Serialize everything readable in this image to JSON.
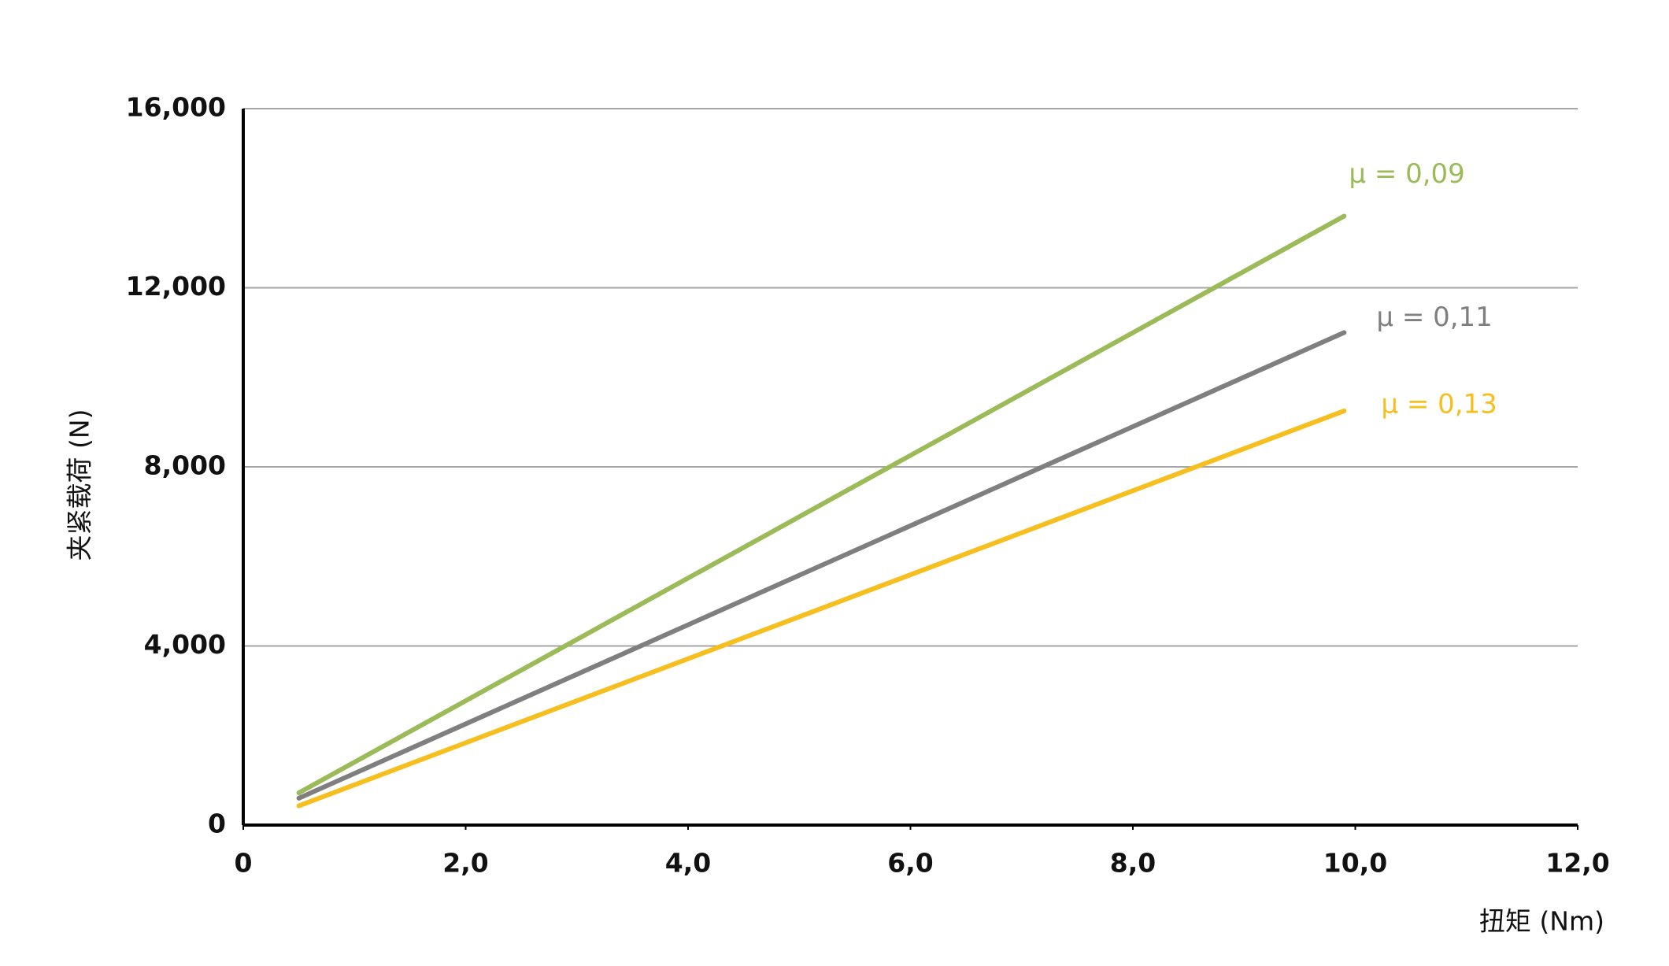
{
  "chart_data": {
    "type": "line",
    "x_label": "扭矩 (Nm)",
    "y_label": "夹紧载荷 (N)",
    "x": [
      0.5,
      9.9
    ],
    "series": [
      {
        "name": "μ = 0,09",
        "color": "#9bbb59",
        "values": [
          720,
          13600
        ]
      },
      {
        "name": "μ = 0,11",
        "color": "#7f7f7f",
        "values": [
          600,
          11000
        ]
      },
      {
        "name": "μ = 0,13",
        "color": "#f6be1e",
        "values": [
          430,
          9250
        ]
      }
    ],
    "xlim": [
      0,
      12
    ],
    "xticks": [
      0,
      {
        "value": 2,
        "label": "2,0"
      },
      {
        "value": 4,
        "label": "4,0"
      },
      {
        "value": 6,
        "label": "6,0"
      },
      {
        "value": 8,
        "label": "8,0"
      },
      {
        "value": 10,
        "label": "10,0"
      },
      {
        "value": 12,
        "label": "12,0"
      }
    ],
    "ylim": [
      0,
      16000
    ],
    "yticks": [
      0,
      {
        "value": 4000,
        "label": "4,000"
      },
      {
        "value": 8000,
        "label": "8,000"
      },
      {
        "value": 12000,
        "label": "12,000"
      },
      {
        "value": 16000,
        "label": "16,000"
      }
    ],
    "grid": true
  }
}
